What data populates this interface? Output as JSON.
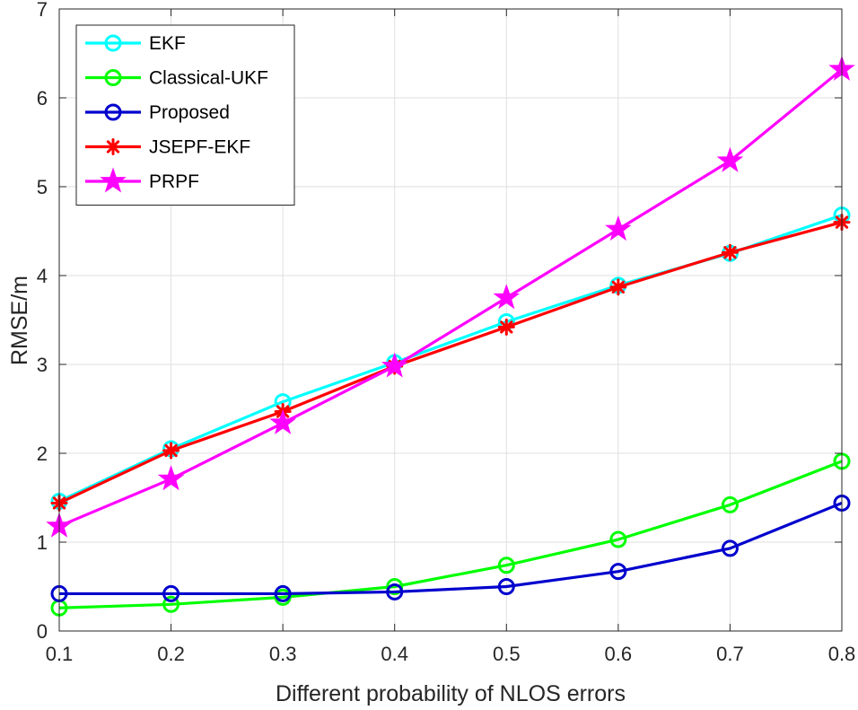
{
  "chart_data": {
    "type": "line",
    "title": "",
    "xlabel": "Different probability of NLOS errors",
    "ylabel": "RMSE/m",
    "xlim": [
      0.1,
      0.8
    ],
    "ylim": [
      0,
      7
    ],
    "grid": true,
    "legend_position": "top-left",
    "x": [
      0.1,
      0.2,
      0.3,
      0.4,
      0.5,
      0.6,
      0.7,
      0.8
    ],
    "xticks": [
      "0.1",
      "0.2",
      "0.3",
      "0.4",
      "0.5",
      "0.6",
      "0.7",
      "0.8"
    ],
    "yticks": [
      "0",
      "1",
      "2",
      "3",
      "4",
      "5",
      "6",
      "7"
    ],
    "series": [
      {
        "name": "EKF",
        "color": "#00ffff",
        "marker": "circle",
        "values": [
          1.46,
          2.05,
          2.58,
          3.02,
          3.48,
          3.89,
          4.25,
          4.68
        ]
      },
      {
        "name": "Classical-UKF",
        "color": "#00ff00",
        "marker": "circle",
        "values": [
          0.26,
          0.3,
          0.38,
          0.5,
          0.74,
          1.03,
          1.42,
          1.91
        ]
      },
      {
        "name": "Proposed",
        "color": "#0000cd",
        "marker": "circle",
        "values": [
          0.42,
          0.42,
          0.42,
          0.44,
          0.5,
          0.67,
          0.93,
          1.44
        ]
      },
      {
        "name": "JSEPF-EKF",
        "color": "#ff0000",
        "marker": "asterisk",
        "values": [
          1.44,
          2.03,
          2.47,
          2.98,
          3.42,
          3.87,
          4.26,
          4.6
        ]
      },
      {
        "name": "PRPF",
        "color": "#ff00ff",
        "marker": "star",
        "values": [
          1.18,
          1.71,
          2.34,
          2.98,
          3.75,
          4.52,
          5.29,
          6.32
        ]
      }
    ]
  }
}
